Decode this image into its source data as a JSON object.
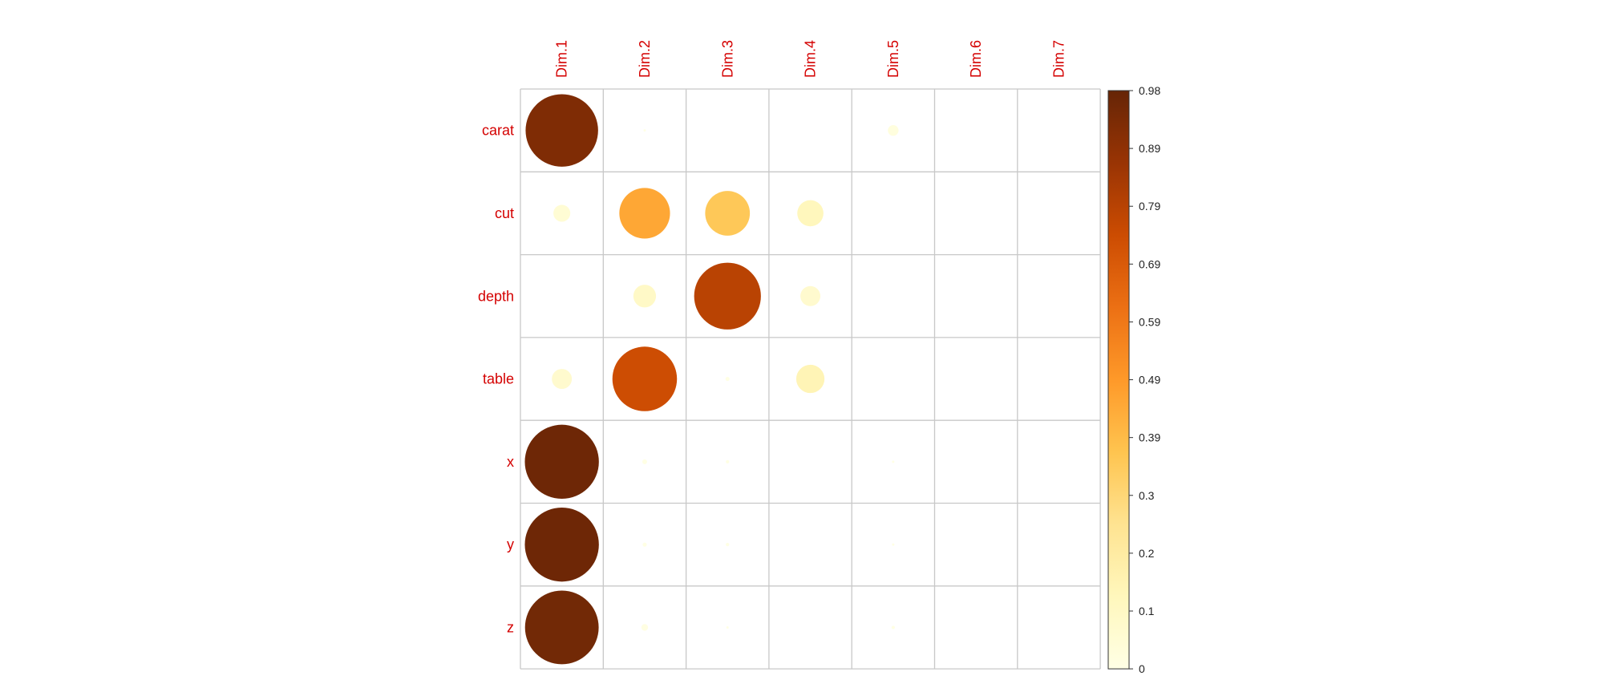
{
  "chart_data": {
    "type": "heatmap",
    "style": "circle correlation plot",
    "rows": [
      "carat",
      "cut",
      "depth",
      "table",
      "x",
      "y",
      "z"
    ],
    "columns": [
      "Dim.1",
      "Dim.2",
      "Dim.3",
      "Dim.4",
      "Dim.5",
      "Dim.6",
      "Dim.7"
    ],
    "values": [
      [
        0.92,
        0.001,
        0.0,
        0.0,
        0.02,
        0.0,
        0.0
      ],
      [
        0.05,
        0.45,
        0.35,
        0.12,
        0.0,
        0.0,
        0.0
      ],
      [
        0.0,
        0.09,
        0.78,
        0.07,
        0.0,
        0.0,
        0.0
      ],
      [
        0.07,
        0.73,
        0.003,
        0.14,
        0.0,
        0.0,
        0.0
      ],
      [
        0.96,
        0.004,
        0.002,
        0.0,
        0.001,
        0.0,
        0.0
      ],
      [
        0.96,
        0.003,
        0.002,
        0.0,
        0.001,
        0.0,
        0.0
      ],
      [
        0.95,
        0.008,
        0.001,
        0.0,
        0.002,
        0.0,
        0.0
      ]
    ],
    "colorbar": {
      "ticks": [
        "0",
        "0.1",
        "0.2",
        "0.3",
        "0.39",
        "0.49",
        "0.59",
        "0.69",
        "0.79",
        "0.89",
        "0.98"
      ],
      "min": 0,
      "max": 0.98,
      "colors": [
        "#ffffe5",
        "#fff7bc",
        "#fee391",
        "#fec44f",
        "#fe9929",
        "#ec7014",
        "#cc4c02",
        "#993404",
        "#662506"
      ]
    },
    "label_color": "#d40000",
    "grid": true
  }
}
